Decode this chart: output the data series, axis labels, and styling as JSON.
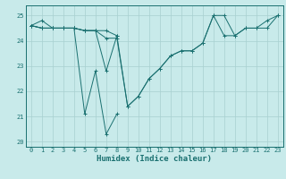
{
  "xlabel": "Humidex (Indice chaleur)",
  "ylabel": "",
  "background_color": "#c8eaea",
  "line_color": "#1a7070",
  "grid_color": "#a8d0d0",
  "xlim": [
    -0.5,
    23.5
  ],
  "ylim": [
    19.8,
    25.4
  ],
  "yticks": [
    20,
    21,
    22,
    23,
    24,
    25
  ],
  "xticks": [
    0,
    1,
    2,
    3,
    4,
    5,
    6,
    7,
    8,
    9,
    10,
    11,
    12,
    13,
    14,
    15,
    16,
    17,
    18,
    19,
    20,
    21,
    22,
    23
  ],
  "lines": [
    [
      24.6,
      24.8,
      24.5,
      24.5,
      24.5,
      24.4,
      24.4,
      24.4,
      24.2,
      21.4,
      21.8,
      22.5,
      22.9,
      23.4,
      23.6,
      23.6,
      23.9,
      25.0,
      25.0,
      24.2,
      24.5,
      24.5,
      24.8,
      25.0
    ],
    [
      24.6,
      24.5,
      24.5,
      24.5,
      24.5,
      21.1,
      22.8,
      20.3,
      21.1,
      null,
      null,
      null,
      null,
      null,
      null,
      null,
      null,
      null,
      null,
      null,
      null,
      null,
      null,
      null
    ],
    [
      24.6,
      24.5,
      24.5,
      24.5,
      24.5,
      24.4,
      24.4,
      22.8,
      24.2,
      null,
      null,
      null,
      null,
      null,
      null,
      null,
      null,
      null,
      null,
      null,
      null,
      null,
      null,
      null
    ],
    [
      24.6,
      24.5,
      24.5,
      24.5,
      24.5,
      24.4,
      24.4,
      24.1,
      24.1,
      21.4,
      21.8,
      22.5,
      22.9,
      23.4,
      23.6,
      23.6,
      23.9,
      25.0,
      24.2,
      24.2,
      24.5,
      24.5,
      24.5,
      25.0
    ]
  ]
}
